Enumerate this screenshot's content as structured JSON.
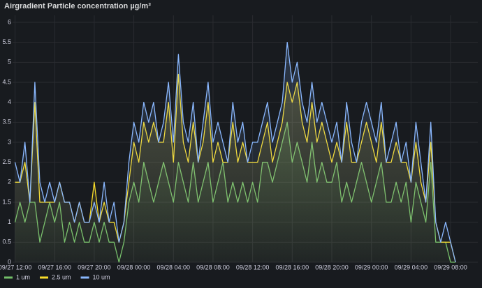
{
  "chart_data": {
    "type": "line",
    "title": "Airgradient Particle concentration µg/m³",
    "x": [
      "09/27 12:00",
      "09/27 12:30",
      "09/27 13:00",
      "09/27 13:30",
      "09/27 14:00",
      "09/27 14:30",
      "09/27 15:00",
      "09/27 15:30",
      "09/27 16:00",
      "09/27 16:30",
      "09/27 17:00",
      "09/27 17:30",
      "09/27 18:00",
      "09/27 18:30",
      "09/27 19:00",
      "09/27 19:30",
      "09/27 20:00",
      "09/27 20:30",
      "09/27 21:00",
      "09/27 21:30",
      "09/27 22:00",
      "09/27 22:30",
      "09/27 23:00",
      "09/27 23:30",
      "09/28 00:00",
      "09/28 00:30",
      "09/28 01:00",
      "09/28 01:30",
      "09/28 02:00",
      "09/28 02:30",
      "09/28 03:00",
      "09/28 03:30",
      "09/28 04:00",
      "09/28 04:30",
      "09/28 05:00",
      "09/28 05:30",
      "09/28 06:00",
      "09/28 06:30",
      "09/28 07:00",
      "09/28 07:30",
      "09/28 08:00",
      "09/28 08:30",
      "09/28 09:00",
      "09/28 09:30",
      "09/28 10:00",
      "09/28 10:30",
      "09/28 11:00",
      "09/28 11:30",
      "09/28 12:00",
      "09/28 12:30",
      "09/28 13:00",
      "09/28 13:30",
      "09/28 14:00",
      "09/28 14:30",
      "09/28 15:00",
      "09/28 15:30",
      "09/28 16:00",
      "09/28 16:30",
      "09/28 17:00",
      "09/28 17:30",
      "09/28 18:00",
      "09/28 18:30",
      "09/28 19:00",
      "09/28 19:30",
      "09/28 20:00",
      "09/28 20:30",
      "09/28 21:00",
      "09/28 21:30",
      "09/28 22:00",
      "09/28 22:30",
      "09/28 23:00",
      "09/28 23:30",
      "09/29 00:00",
      "09/29 00:30",
      "09/29 01:00",
      "09/29 01:30",
      "09/29 02:00",
      "09/29 02:30",
      "09/29 03:00",
      "09/29 03:30",
      "09/29 04:00",
      "09/29 04:30",
      "09/29 05:00",
      "09/29 05:30",
      "09/29 06:00",
      "09/29 06:30",
      "09/29 07:00",
      "09/29 07:30",
      "09/29 08:00",
      "09/29 08:30"
    ],
    "series": [
      {
        "name": "1 um",
        "color": "#73bf69",
        "values": [
          1,
          1.5,
          1,
          1.5,
          1.5,
          0.5,
          1,
          1.5,
          1,
          1.5,
          0.5,
          1,
          0.5,
          1,
          0.5,
          0.5,
          1,
          0.5,
          1,
          0.5,
          0.5,
          0,
          0.5,
          1.5,
          2,
          1.5,
          2.5,
          2,
          1.5,
          2,
          2.5,
          2,
          1.5,
          2.5,
          2,
          1.5,
          2.5,
          1.5,
          2,
          2.5,
          1.5,
          2,
          2.5,
          1.5,
          2,
          1.5,
          2,
          1.5,
          2,
          1.5,
          2.5,
          2.5,
          2,
          2.5,
          3,
          3.5,
          2.5,
          3,
          2.5,
          2,
          3,
          2,
          2.5,
          2,
          2,
          2.5,
          1.5,
          2,
          1.5,
          2,
          2.5,
          2,
          1.5,
          2,
          2.5,
          1.5,
          1.5,
          2,
          1.5,
          2,
          1,
          2,
          1.5,
          1,
          2.5,
          0.5,
          0.5,
          0.5,
          0,
          0
        ]
      },
      {
        "name": "2.5 um",
        "color": "#fade2a",
        "values": [
          2,
          2,
          2.5,
          1.5,
          4,
          1.5,
          1.5,
          1.5,
          1.5,
          2,
          1.5,
          1.5,
          1,
          1.5,
          1,
          1,
          2,
          1,
          1.5,
          1,
          1,
          0.5,
          1,
          2,
          3,
          2.5,
          3.5,
          3,
          3.5,
          3,
          3,
          4,
          2.5,
          4.7,
          3,
          2.5,
          3.5,
          2.5,
          3,
          4,
          2.5,
          3,
          2.5,
          2.5,
          3.5,
          2.5,
          3,
          2.5,
          2.5,
          2.5,
          3,
          3.5,
          2.5,
          3,
          3.5,
          4.5,
          4,
          4.5,
          3.5,
          3,
          4,
          3,
          3.5,
          3,
          2.5,
          3,
          2.5,
          3.5,
          2.5,
          2.5,
          3,
          3.5,
          3,
          2.5,
          3.5,
          2.5,
          2.5,
          3,
          2.5,
          2.5,
          2,
          3,
          2,
          1.5,
          3,
          1,
          0.5,
          0.5,
          0.5,
          0
        ]
      },
      {
        "name": "10 um",
        "color": "#8ab8ff",
        "values": [
          2.5,
          2,
          3,
          1.5,
          4.5,
          2,
          1.5,
          2,
          1.5,
          2,
          1.5,
          1.5,
          1,
          1.5,
          1,
          1,
          1.5,
          1,
          2,
          1,
          1.5,
          0.5,
          1,
          2.5,
          3.5,
          3,
          4,
          3.5,
          4,
          3,
          3.5,
          4.5,
          3,
          5.2,
          3.5,
          3,
          4,
          2.5,
          3.5,
          4.5,
          3,
          3.5,
          3,
          2.5,
          4,
          3,
          3.5,
          2.5,
          3,
          3,
          3.5,
          4,
          3,
          3.5,
          4,
          5.5,
          4.5,
          5,
          4,
          3.5,
          4.5,
          3.5,
          4,
          3.5,
          3,
          3.5,
          2.5,
          4,
          3,
          2.5,
          3.5,
          4,
          3.5,
          3,
          4,
          2.5,
          3,
          3.5,
          2.5,
          3,
          2,
          3.5,
          2.5,
          1.5,
          3.5,
          1,
          0.5,
          1,
          0.5,
          0
        ]
      }
    ],
    "xlim": [
      "09/27 11:45",
      "09/29 10:45"
    ],
    "xticks": [
      "09/27 12:00",
      "09/27 16:00",
      "09/27 20:00",
      "09/28 00:00",
      "09/28 04:00",
      "09/28 08:00",
      "09/28 12:00",
      "09/28 16:00",
      "09/28 20:00",
      "09/29 00:00",
      "09/29 04:00",
      "09/29 08:00"
    ],
    "ylim": [
      0,
      6
    ],
    "yticks": [
      0,
      0.5,
      1,
      1.5,
      2,
      2.5,
      3,
      3.5,
      4,
      4.5,
      5,
      5.5,
      6
    ],
    "grid": true,
    "legend": "bottom-left"
  }
}
